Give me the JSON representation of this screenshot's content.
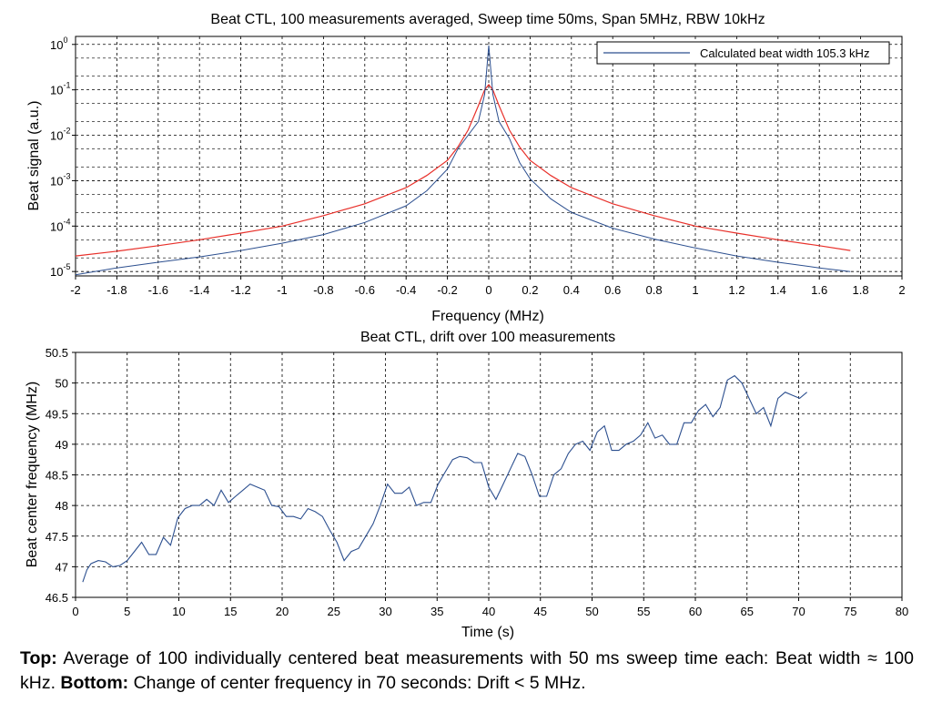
{
  "chart_data": [
    {
      "type": "line",
      "title": "Beat CTL, 100 measurements averaged, Sweep time 50ms, Span 5MHz, RBW 10kHz",
      "xlabel": "Frequency (MHz)",
      "ylabel": "Beat signal (a.u.)",
      "xlim": [
        -2,
        2
      ],
      "ylim": [
        8e-06,
        1.5
      ],
      "yscale": "log",
      "grid": true,
      "legend": "top-right",
      "x_ticks": [
        "-2",
        "-1.8",
        "-1.6",
        "-1.4",
        "-1.2",
        "-1",
        "-0.8",
        "-0.6",
        "-0.4",
        "-0.2",
        "0",
        "0.2",
        "0.4",
        "0.6",
        "0.8",
        "1",
        "1.2",
        "1.4",
        "1.6",
        "1.8",
        "2"
      ],
      "y_ticks": [
        {
          "base": "10",
          "exp": "0"
        },
        {
          "base": "10",
          "exp": "-1"
        },
        {
          "base": "10",
          "exp": "-2"
        },
        {
          "base": "10",
          "exp": "-3"
        },
        {
          "base": "10",
          "exp": "-4"
        },
        {
          "base": "10",
          "exp": "-5"
        }
      ],
      "series": [
        {
          "name": "Calculated beat width 105.3 kHz",
          "color": "#2c4f8f",
          "x": [
            -2.0,
            -1.8,
            -1.6,
            -1.4,
            -1.2,
            -1.0,
            -0.8,
            -0.6,
            -0.4,
            -0.3,
            -0.2,
            -0.15,
            -0.1,
            -0.05,
            -0.02,
            0.0,
            0.02,
            0.05,
            0.1,
            0.15,
            0.2,
            0.3,
            0.4,
            0.6,
            0.8,
            1.0,
            1.2,
            1.4,
            1.6,
            1.75
          ],
          "values": [
            8.5e-06,
            1.2e-05,
            1.6e-05,
            2.1e-05,
            2.9e-05,
            4.2e-05,
            6.5e-05,
            0.00012,
            0.00028,
            0.0006,
            0.0018,
            0.005,
            0.01,
            0.02,
            0.08,
            0.95,
            0.08,
            0.02,
            0.0085,
            0.0025,
            0.0011,
            0.0004,
            0.0002,
            9e-05,
            5.2e-05,
            3.3e-05,
            2.2e-05,
            1.6e-05,
            1.2e-05,
            1e-05
          ]
        },
        {
          "name": "",
          "color": "#e8302a",
          "x": [
            -2.0,
            -1.8,
            -1.6,
            -1.4,
            -1.2,
            -1.0,
            -0.8,
            -0.6,
            -0.4,
            -0.3,
            -0.2,
            -0.15,
            -0.1,
            -0.05,
            -0.02,
            0.0,
            0.02,
            0.05,
            0.1,
            0.15,
            0.2,
            0.3,
            0.4,
            0.6,
            0.8,
            1.0,
            1.2,
            1.4,
            1.6,
            1.75
          ],
          "values": [
            2.2e-05,
            2.8e-05,
            3.7e-05,
            5e-05,
            7e-05,
            0.0001,
            0.00017,
            0.00031,
            0.0007,
            0.0013,
            0.0028,
            0.0055,
            0.013,
            0.045,
            0.1,
            0.13,
            0.1,
            0.045,
            0.013,
            0.0055,
            0.0028,
            0.0013,
            0.0007,
            0.00031,
            0.00017,
            0.0001,
            7e-05,
            5e-05,
            3.7e-05,
            2.9e-05
          ]
        }
      ]
    },
    {
      "type": "line",
      "title": "Beat CTL, drift over 100 measurements",
      "xlabel": "Time (s)",
      "ylabel": "Beat center frequency (MHz)",
      "xlim": [
        0,
        80
      ],
      "ylim": [
        46.5,
        50.5
      ],
      "grid": true,
      "x_ticks": [
        "0",
        "5",
        "10",
        "15",
        "20",
        "25",
        "30",
        "35",
        "40",
        "45",
        "50",
        "55",
        "60",
        "65",
        "70",
        "75",
        "80"
      ],
      "y_ticks": [
        "50.5",
        "50",
        "49.5",
        "49",
        "48.5",
        "48",
        "47.5",
        "47",
        "46.5"
      ],
      "series": [
        {
          "name": "",
          "color": "#2c4f8f",
          "x": [
            0.7,
            1.1,
            1.5,
            2.2,
            2.9,
            3.6,
            4.3,
            5.0,
            5.7,
            6.4,
            7.1,
            7.8,
            8.5,
            9.2,
            9.9,
            10.6,
            11.3,
            12.0,
            12.7,
            13.4,
            14.1,
            14.8,
            15.5,
            16.2,
            16.9,
            17.6,
            18.3,
            19.0,
            19.7,
            20.4,
            21.1,
            21.8,
            22.5,
            23.2,
            23.9,
            24.6,
            25.3,
            26.0,
            26.7,
            27.4,
            28.1,
            28.8,
            29.5,
            30.2,
            30.9,
            31.6,
            32.3,
            33.0,
            33.7,
            34.4,
            35.1,
            35.8,
            36.5,
            37.2,
            37.9,
            38.6,
            39.3,
            40.0,
            40.7,
            41.4,
            42.1,
            42.8,
            43.5,
            44.2,
            44.9,
            45.6,
            46.3,
            47.0,
            47.7,
            48.4,
            49.1,
            49.8,
            50.5,
            51.2,
            51.9,
            52.6,
            53.3,
            54.0,
            54.7,
            55.4,
            56.1,
            56.8,
            57.5,
            58.2,
            58.9,
            59.6,
            60.3,
            61.0,
            61.7,
            62.4,
            63.1,
            63.8,
            64.5,
            65.2,
            65.9,
            66.6,
            67.3,
            68.0,
            68.7,
            69.4,
            70.1,
            70.8
          ],
          "values": [
            46.75,
            46.95,
            47.05,
            47.1,
            47.08,
            47.0,
            47.02,
            47.1,
            47.25,
            47.4,
            47.2,
            47.2,
            47.48,
            47.35,
            47.8,
            47.95,
            48.0,
            48.0,
            48.1,
            48.0,
            48.25,
            48.05,
            48.15,
            48.25,
            48.35,
            48.3,
            48.25,
            48.0,
            47.98,
            47.82,
            47.82,
            47.78,
            47.95,
            47.9,
            47.82,
            47.6,
            47.4,
            47.1,
            47.25,
            47.3,
            47.5,
            47.7,
            48.0,
            48.35,
            48.2,
            48.2,
            48.3,
            48.0,
            48.05,
            48.05,
            48.35,
            48.55,
            48.75,
            48.8,
            48.78,
            48.7,
            48.7,
            48.3,
            48.1,
            48.35,
            48.6,
            48.85,
            48.8,
            48.5,
            48.15,
            48.15,
            48.5,
            48.6,
            48.85,
            49.0,
            49.05,
            48.9,
            49.2,
            49.3,
            48.9,
            48.9,
            49.0,
            49.05,
            49.15,
            49.35,
            49.1,
            49.15,
            49.0,
            49.0,
            49.35,
            49.35,
            49.55,
            49.65,
            49.45,
            49.6,
            50.05,
            50.12,
            50.0,
            49.75,
            49.5,
            49.6,
            49.3,
            49.75,
            49.85,
            49.8,
            49.75,
            49.85
          ]
        }
      ]
    }
  ],
  "caption": {
    "top_label": "Top:",
    "top_text": " Average of 100 individually centered beat measurements with 50 ms sweep time each: Beat width ≈ 100 kHz. ",
    "bottom_label": "Bottom:",
    "bottom_text": " Change of center frequency in 70 seconds: Drift < 5 MHz."
  }
}
